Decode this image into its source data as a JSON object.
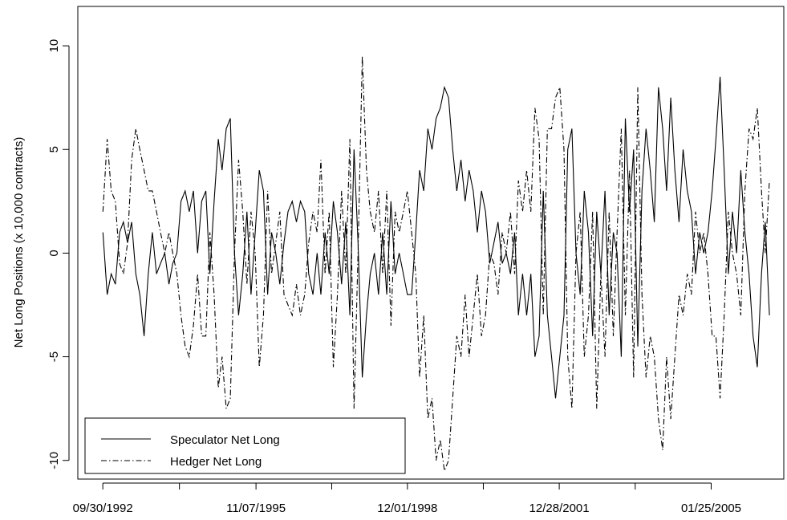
{
  "chart_data": {
    "type": "line",
    "y_label": "Net Long Positions (x 10,000 contracts)",
    "x": [
      "10/01/1992",
      "11/01/1992",
      "12/01/1992",
      "01/01/1993",
      "02/01/1993",
      "03/01/1993",
      "04/01/1993",
      "05/01/1993",
      "06/01/1993",
      "07/01/1993",
      "08/01/1993",
      "09/01/1993",
      "10/01/1993",
      "11/01/1993",
      "12/01/1993",
      "01/01/1994",
      "02/01/1994",
      "03/01/1994",
      "04/01/1994",
      "05/01/1994",
      "06/01/1994",
      "07/01/1994",
      "08/01/1994",
      "09/01/1994",
      "10/01/1994",
      "11/01/1994",
      "12/01/1994",
      "01/01/1995",
      "02/01/1995",
      "03/01/1995",
      "04/01/1995",
      "05/01/1995",
      "06/01/1995",
      "07/01/1995",
      "08/01/1995",
      "09/01/1995",
      "10/01/1995",
      "11/01/1995",
      "12/01/1995",
      "01/01/1996",
      "02/01/1996",
      "03/01/1996",
      "04/01/1996",
      "05/01/1996",
      "06/01/1996",
      "07/01/1996",
      "08/01/1996",
      "09/01/1996",
      "10/01/1996",
      "11/01/1996",
      "12/01/1996",
      "01/01/1997",
      "02/01/1997",
      "03/01/1997",
      "04/01/1997",
      "05/01/1997",
      "06/01/1997",
      "07/01/1997",
      "08/01/1997",
      "09/01/1997",
      "10/01/1997",
      "11/01/1997",
      "12/01/1997",
      "01/01/1998",
      "02/01/1998",
      "03/01/1998",
      "04/01/1998",
      "05/01/1998",
      "06/01/1998",
      "07/01/1998",
      "08/01/1998",
      "09/01/1998",
      "10/01/1998",
      "11/01/1998",
      "12/01/1998",
      "01/01/1999",
      "02/01/1999",
      "03/01/1999",
      "04/01/1999",
      "05/01/1999",
      "06/01/1999",
      "07/01/1999",
      "08/01/1999",
      "09/01/1999",
      "10/01/1999",
      "11/01/1999",
      "12/01/1999",
      "01/01/2000",
      "02/01/2000",
      "03/01/2000",
      "04/01/2000",
      "05/01/2000",
      "06/01/2000",
      "07/01/2000",
      "08/01/2000",
      "09/01/2000",
      "10/01/2000",
      "11/01/2000",
      "12/01/2000",
      "01/01/2001",
      "02/01/2001",
      "03/01/2001",
      "04/01/2001",
      "05/01/2001",
      "06/01/2001",
      "07/01/2001",
      "08/01/2001",
      "09/01/2001",
      "10/01/2001",
      "11/01/2001",
      "12/01/2001",
      "01/01/2002",
      "02/01/2002",
      "03/01/2002",
      "04/01/2002",
      "05/01/2002",
      "06/01/2002",
      "07/01/2002",
      "08/01/2002",
      "09/01/2002",
      "10/01/2002",
      "11/01/2002",
      "12/01/2002",
      "01/01/2003",
      "02/01/2003",
      "03/01/2003",
      "04/01/2003",
      "05/01/2003",
      "06/01/2003",
      "07/01/2003",
      "08/01/2003",
      "09/01/2003",
      "10/01/2003",
      "11/01/2003",
      "12/01/2003",
      "01/01/2004",
      "02/01/2004",
      "03/01/2004",
      "04/01/2004",
      "05/01/2004",
      "06/01/2004",
      "07/01/2004",
      "08/01/2004",
      "09/01/2004",
      "10/01/2004",
      "11/01/2004",
      "12/01/2004",
      "01/01/2005",
      "02/01/2005",
      "03/01/2005",
      "04/01/2005",
      "05/01/2005",
      "06/01/2005",
      "07/01/2005",
      "08/01/2005",
      "09/01/2005",
      "10/01/2005",
      "11/01/2005",
      "12/01/2005",
      "01/01/2006",
      "02/01/2006",
      "03/01/2006",
      "04/01/2006"
    ],
    "series": [
      {
        "name": "Speculator Net Long",
        "color": "#000000",
        "line_style": "solid",
        "values": [
          1,
          -2,
          -1,
          -1.5,
          1,
          1.5,
          0.5,
          1.5,
          -1,
          -2,
          -4,
          -1,
          1,
          -1,
          -0.5,
          0,
          -1.5,
          -0.5,
          0,
          2.5,
          3,
          2,
          3,
          0,
          2.5,
          3,
          -1,
          2.5,
          5.5,
          4,
          6,
          6.5,
          0,
          -3,
          -1,
          2,
          -2,
          1,
          4,
          3,
          -2,
          1,
          0,
          -1.5,
          0.5,
          2,
          2.5,
          1.5,
          2.5,
          2,
          -1,
          -2,
          0,
          -2,
          1,
          -1,
          2.5,
          1,
          -1.5,
          1.5,
          -3,
          5,
          0.5,
          -6,
          -3,
          -1,
          0,
          -2,
          1,
          -2,
          2.5,
          -1,
          0,
          -1,
          -2,
          -2,
          1,
          4,
          3,
          6,
          5,
          6.5,
          7,
          8,
          7.5,
          5,
          3,
          4.5,
          2.5,
          4,
          3,
          1,
          3,
          2,
          -0.5,
          0.5,
          1.5,
          -0.5,
          0,
          -1,
          1,
          -3,
          -1,
          -3,
          -1,
          -5,
          -4,
          3,
          -3,
          -5,
          -7,
          -5,
          -3,
          5,
          6,
          0,
          -2,
          3,
          1,
          -4,
          2,
          -1,
          3,
          -3,
          1,
          0,
          -5,
          6.5,
          2,
          5,
          -4.5,
          3,
          6,
          4,
          1.5,
          8,
          6,
          3,
          7.5,
          4,
          1.5,
          5,
          3,
          2,
          -1,
          1,
          0,
          1,
          3,
          5.5,
          8.5,
          4,
          -1,
          2,
          0,
          4,
          1,
          -1,
          -4,
          -5.5,
          -1,
          1.5,
          -3
        ]
      },
      {
        "name": "Hedger Net Long",
        "color": "#000000",
        "line_style": "dashdot",
        "values": [
          2,
          5.5,
          3,
          2.5,
          -0.5,
          -1,
          0.5,
          4.5,
          6,
          5,
          4,
          3,
          3,
          2,
          1,
          0,
          1,
          0,
          -1,
          -3,
          -4.5,
          -5,
          -3.5,
          -1,
          -4,
          -4,
          1,
          -2,
          -6.5,
          -5,
          -7.5,
          -7,
          0,
          4.5,
          2,
          -1.5,
          2,
          0,
          -5.5,
          -3,
          3,
          -1,
          0.5,
          2,
          -2,
          -2.5,
          -3,
          -1.5,
          -3,
          -2,
          0.5,
          2,
          1,
          4.5,
          -1,
          2,
          -5.5,
          -2,
          3,
          -1,
          5.5,
          -7.5,
          0,
          9.5,
          4,
          2,
          1,
          3,
          -1,
          3,
          -3.5,
          2,
          1,
          2,
          3,
          1,
          -1,
          -6,
          -3,
          -8,
          -7,
          -10,
          -9,
          -10.5,
          -10,
          -7,
          -4,
          -5,
          -2,
          -5,
          -3,
          -1,
          -4,
          -3,
          0,
          -0.5,
          -2,
          1,
          0,
          2,
          -1,
          3.5,
          2,
          4,
          2,
          7,
          5.5,
          -3,
          6,
          6,
          7.5,
          8,
          5,
          -5,
          -7.5,
          0,
          2,
          -5,
          -3,
          2,
          -7.5,
          -1,
          -5,
          2,
          -4,
          1,
          6,
          -3,
          4,
          -6,
          8,
          -2,
          -6,
          -4,
          -5,
          -8,
          -9.5,
          -5,
          -8,
          -5,
          -2,
          -3,
          -1,
          -2,
          2,
          0,
          1,
          -1,
          -4,
          -4,
          -7,
          -3,
          2,
          0,
          -1,
          -3,
          3,
          6,
          5.5,
          7,
          3,
          0,
          3.5
        ]
      }
    ],
    "xlim": [
      "03/29/1992",
      "07/16/2006"
    ],
    "xticks": [
      "09/30/1992",
      "11/07/1995",
      "12/01/1998",
      "12/28/2001",
      "01/25/2005"
    ],
    "ylim": [
      -10.9,
      11.9
    ],
    "yticks": [
      -10,
      -5,
      0,
      5,
      10
    ],
    "legend": "bottom-left"
  }
}
